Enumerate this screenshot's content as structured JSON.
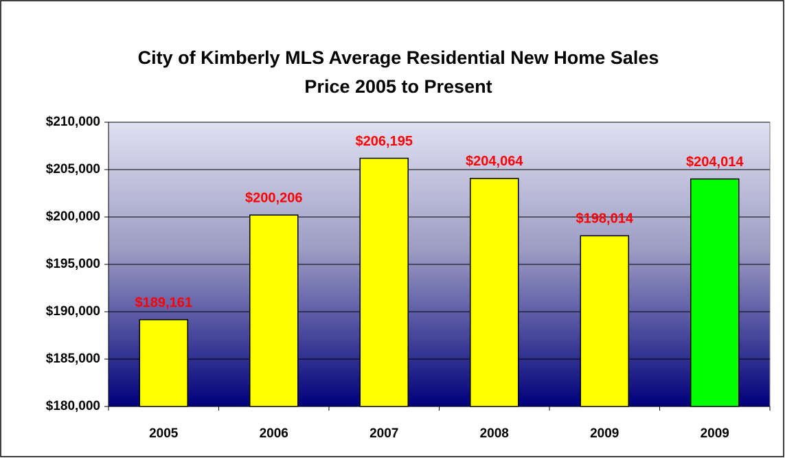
{
  "chart_data": {
    "type": "bar",
    "title": [
      "City of Kimberly MLS Average Residential New Home Sales",
      "Price 2005 to Present"
    ],
    "categories": [
      "2005",
      "2006",
      "2007",
      "2008",
      "2009",
      "2009"
    ],
    "values": [
      189161,
      200206,
      206195,
      204064,
      198014,
      204014
    ],
    "value_labels": [
      "$189,161",
      "$200,206",
      "$206,195",
      "$204,064",
      "$198,014",
      "$204,014"
    ],
    "colors": [
      "#ffff00",
      "#ffff00",
      "#ffff00",
      "#ffff00",
      "#ffff00",
      "#00ff00"
    ],
    "ylim": [
      180000,
      210000
    ],
    "yticks": [
      {
        "value": 180000,
        "label": "$180,000"
      },
      {
        "value": 185000,
        "label": "$185,000"
      },
      {
        "value": 190000,
        "label": "$190,000"
      },
      {
        "value": 195000,
        "label": "$195,000"
      },
      {
        "value": 200000,
        "label": "$200,000"
      },
      {
        "value": 205000,
        "label": "$205,000"
      },
      {
        "value": 210000,
        "label": "$210,000"
      }
    ],
    "grid": true
  }
}
